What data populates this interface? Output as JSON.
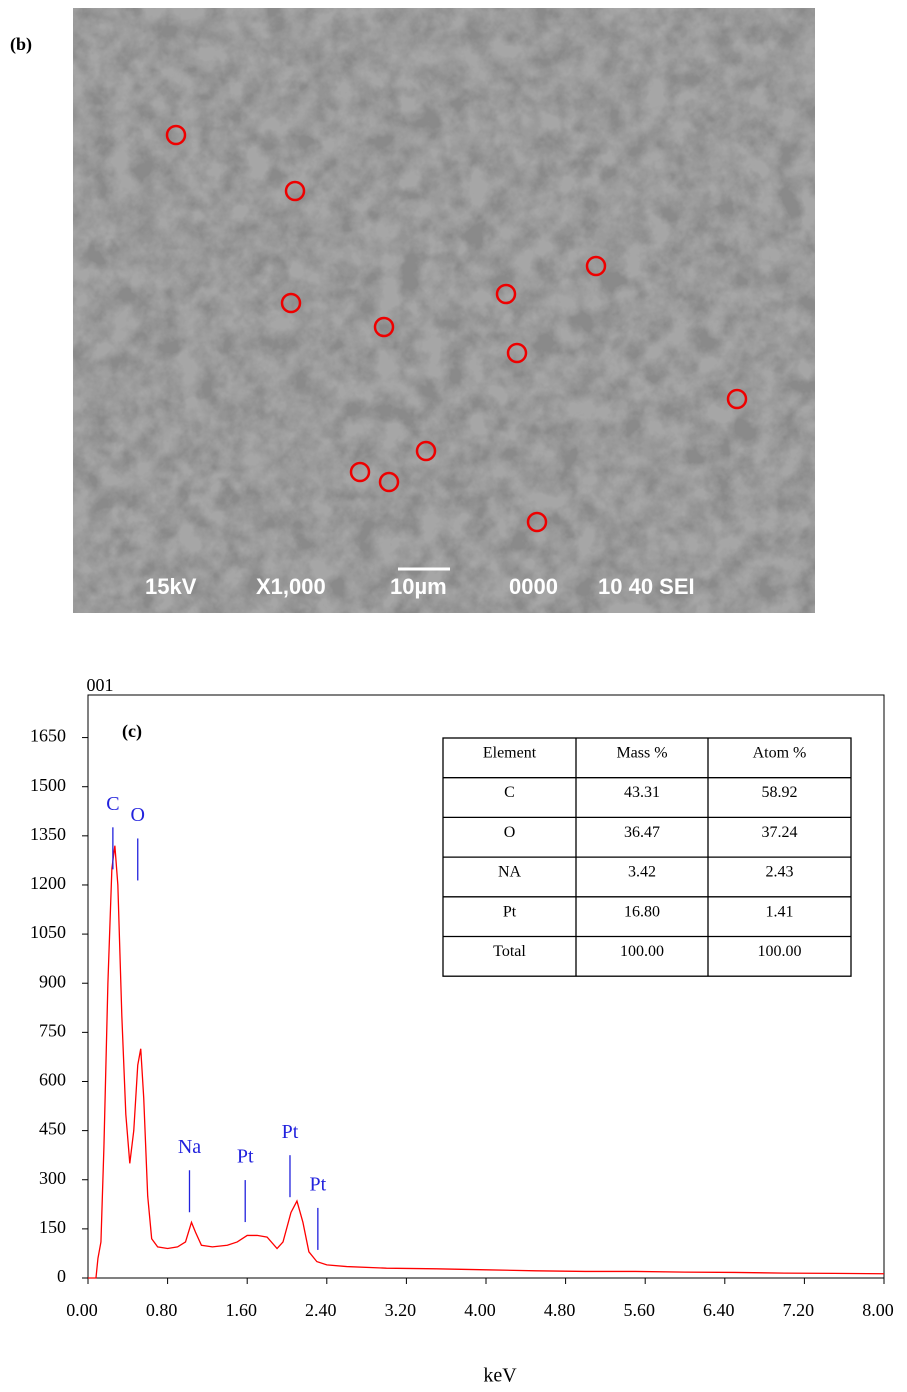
{
  "panel_b": {
    "label": "(b)",
    "scale_bar_text": [
      "15kV",
      "X1,000",
      "10µm",
      "0000",
      "10 40 SEI"
    ]
  },
  "chart_data": {
    "type": "line",
    "panel_label": "(c)",
    "corner_label": "001",
    "x_label": "keV",
    "color": "#ff0000",
    "x": [
      0,
      0.08,
      0.1,
      0.13,
      0.16,
      0.2,
      0.24,
      0.27,
      0.3,
      0.34,
      0.38,
      0.42,
      0.46,
      0.5,
      0.53,
      0.56,
      0.6,
      0.64,
      0.7,
      0.8,
      0.9,
      0.98,
      1.04,
      1.08,
      1.14,
      1.25,
      1.4,
      1.5,
      1.6,
      1.7,
      1.8,
      1.9,
      1.96,
      2.04,
      2.1,
      2.16,
      2.22,
      2.3,
      2.4,
      2.6,
      3.0,
      3.5,
      4.0,
      4.5,
      5.0,
      5.5,
      6.0,
      6.5,
      7.0,
      7.5,
      8.0
    ],
    "values": [
      0,
      0,
      60,
      110,
      400,
      900,
      1250,
      1320,
      1200,
      800,
      500,
      350,
      450,
      650,
      700,
      550,
      250,
      120,
      95,
      90,
      95,
      110,
      170,
      140,
      100,
      95,
      100,
      110,
      130,
      130,
      125,
      90,
      110,
      200,
      235,
      170,
      80,
      50,
      40,
      35,
      30,
      28,
      25,
      22,
      20,
      20,
      18,
      17,
      15,
      14,
      13
    ],
    "xlim": [
      0,
      8
    ],
    "ylim": [
      0,
      1780
    ],
    "xticks": [
      {
        "value": 0,
        "label": "0.00"
      },
      {
        "value": 0.8,
        "label": "0.80"
      },
      {
        "value": 1.6,
        "label": "1.60"
      },
      {
        "value": 2.4,
        "label": "2.40"
      },
      {
        "value": 3.2,
        "label": "3.20"
      },
      {
        "value": 4,
        "label": "4.00"
      },
      {
        "value": 4.8,
        "label": "4.80"
      },
      {
        "value": 5.6,
        "label": "5.60"
      },
      {
        "value": 6.4,
        "label": "6.40"
      },
      {
        "value": 7.2,
        "label": "7.20"
      },
      {
        "value": 8,
        "label": "8.00"
      }
    ],
    "yticks": [
      0,
      150,
      300,
      450,
      600,
      750,
      900,
      1050,
      1200,
      1350,
      1500,
      1650
    ],
    "peaks": [
      {
        "label": "C",
        "x": 0.25,
        "y": 1376
      },
      {
        "label": "O",
        "x": 0.5,
        "y": 1342
      },
      {
        "label": "Na",
        "x": 1.02,
        "y": 329
      },
      {
        "label": "Pt",
        "x": 1.58,
        "y": 299
      },
      {
        "label": "Pt",
        "x": 2.03,
        "y": 375
      },
      {
        "label": "Pt",
        "x": 2.31,
        "y": 214
      }
    ],
    "peak_color": "#2222dd"
  },
  "table": {
    "header": [
      "Element",
      "Mass %",
      "Atom %"
    ],
    "rows": [
      [
        "C",
        "43.31",
        "58.92"
      ],
      [
        "O",
        "36.47",
        "37.24"
      ],
      [
        "NA",
        "3.42",
        "2.43"
      ],
      [
        "Pt",
        "16.80",
        "1.41"
      ],
      [
        "Total",
        "100.00",
        "100.00"
      ]
    ]
  }
}
